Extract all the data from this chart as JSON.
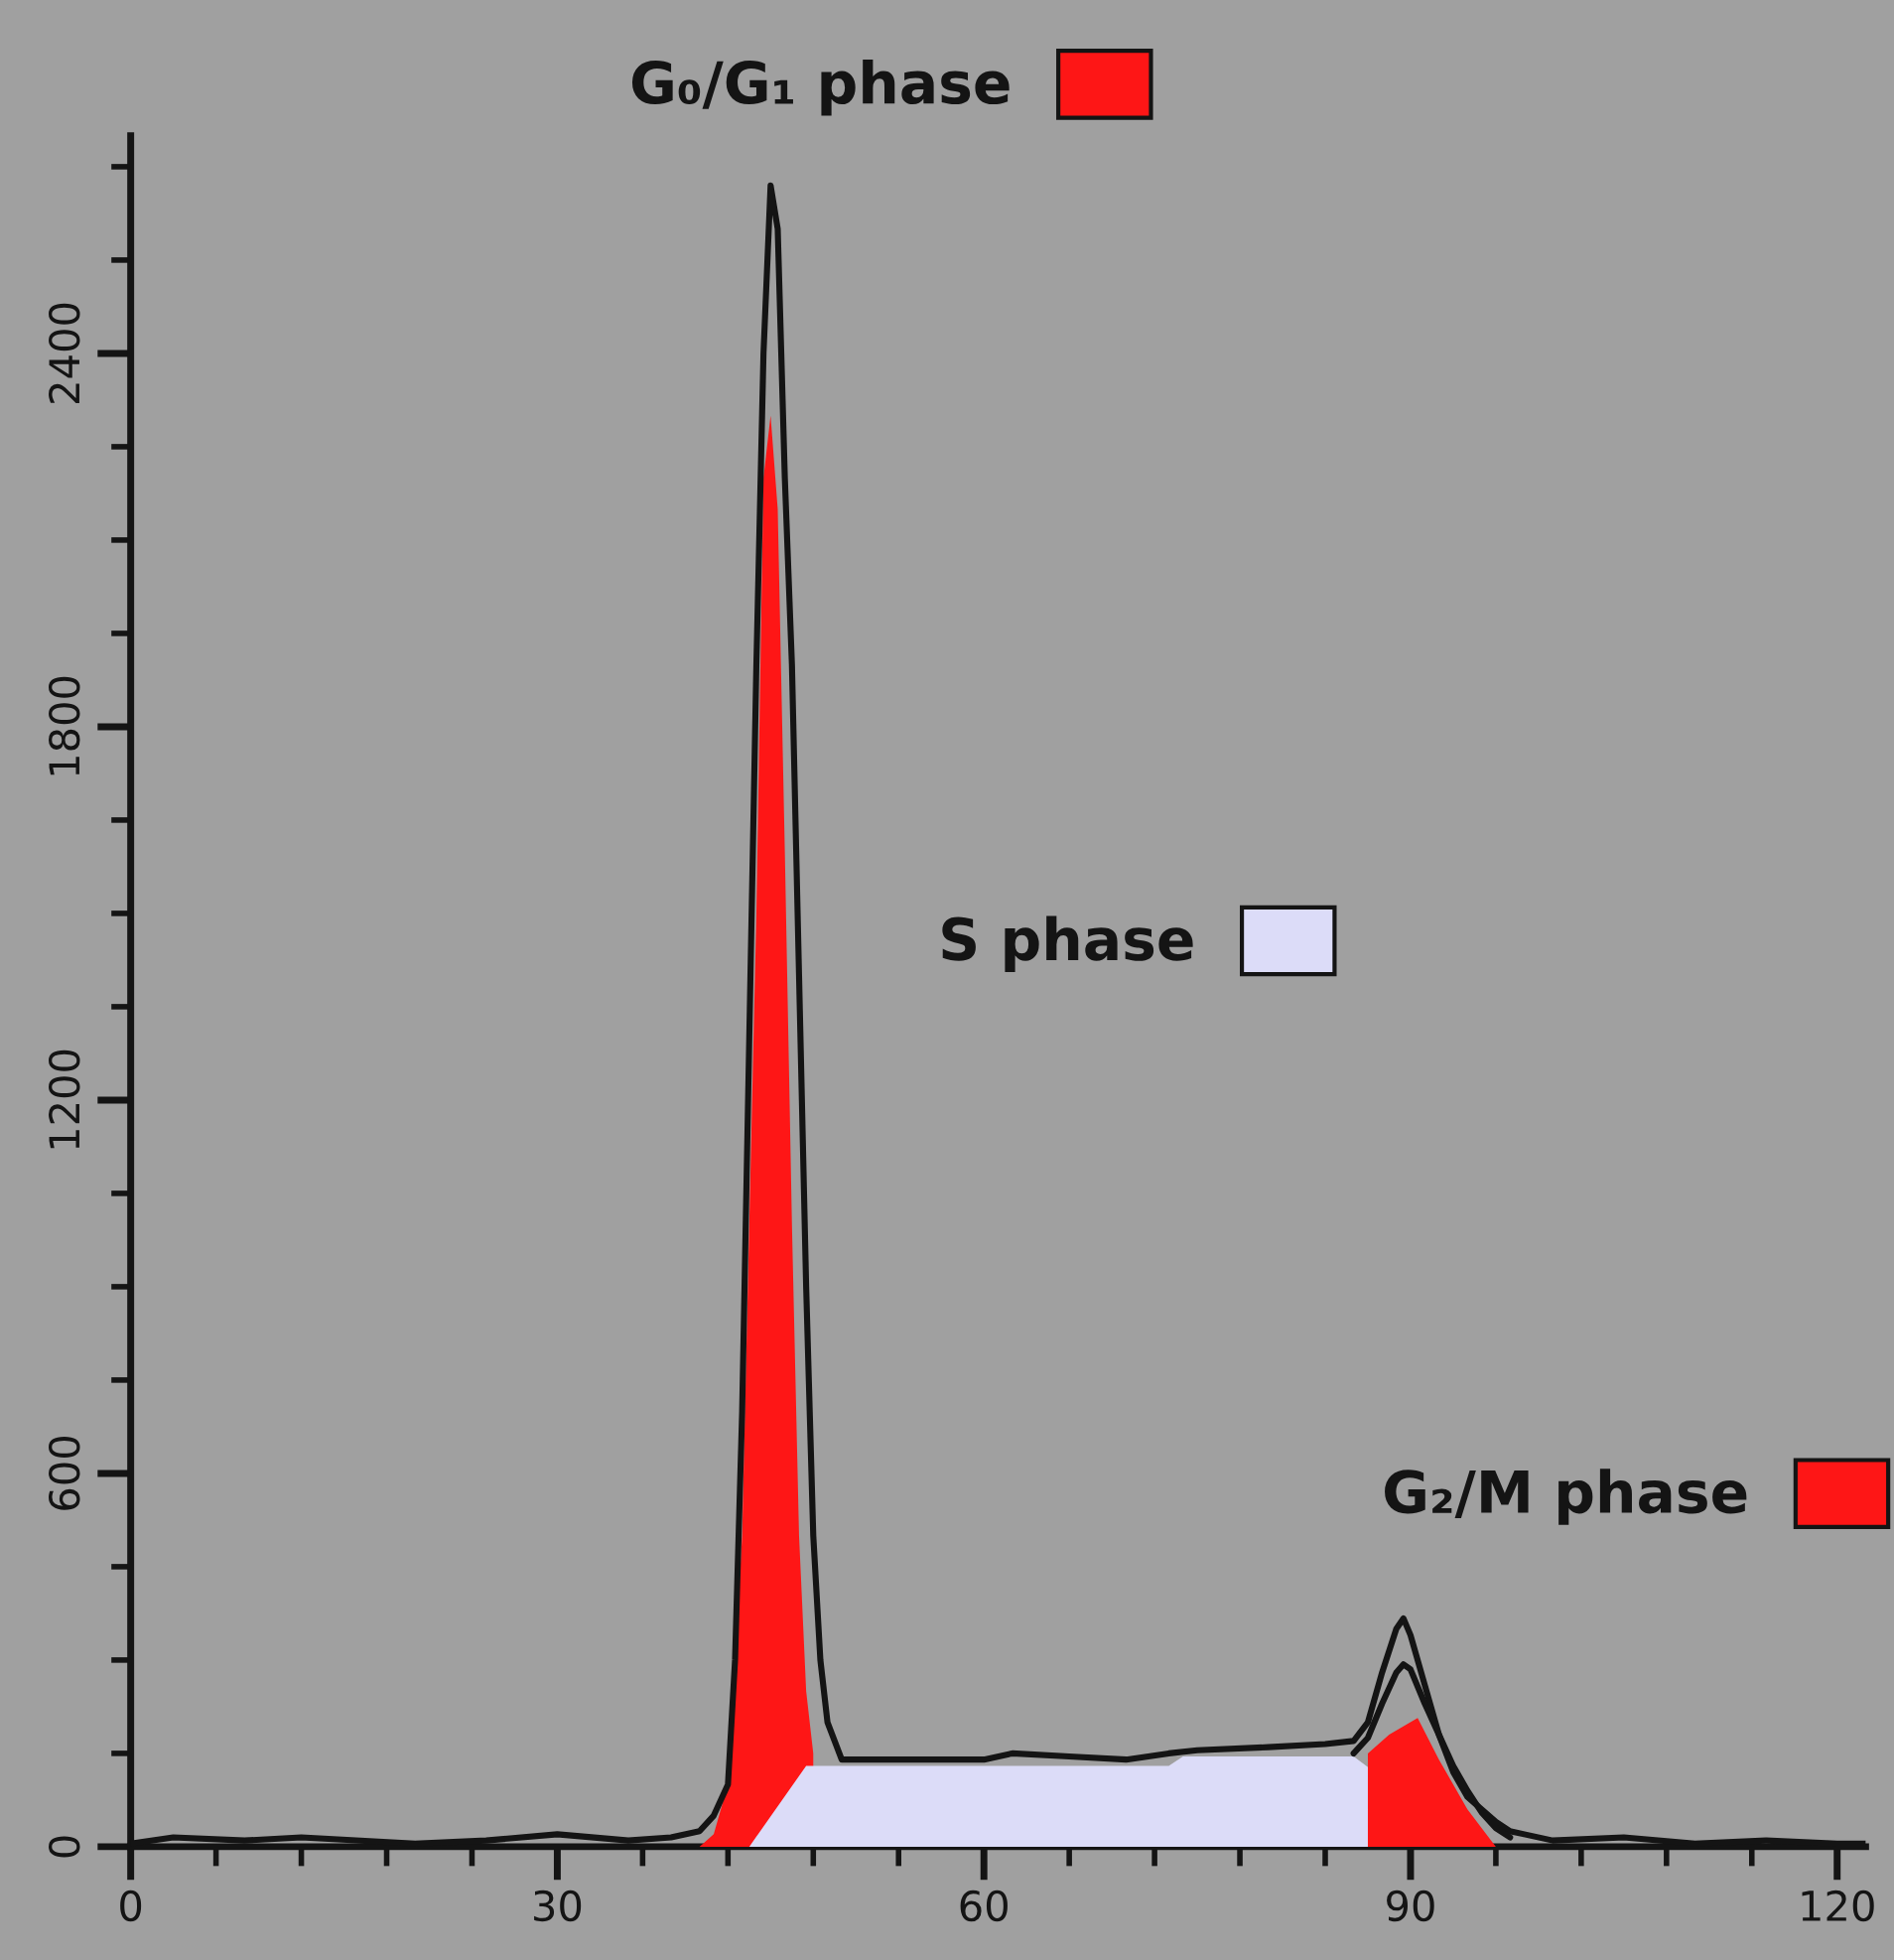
{
  "chart_data": {
    "type": "area",
    "xlim": [
      0,
      122
    ],
    "xticks": [
      0,
      30,
      60,
      90,
      120
    ],
    "ylim": [
      0,
      2750
    ],
    "yticks": [
      0,
      600,
      1200,
      1800,
      2400
    ],
    "grid": false,
    "legend": "top",
    "series": [
      {
        "type": "line",
        "color": "#141414",
        "x": [
          0,
          3,
          8,
          12,
          20,
          25,
          30,
          35,
          38,
          40,
          41,
          42,
          42.5,
          43,
          43.5,
          44,
          44.5,
          45,
          45.5,
          46,
          46.5,
          47,
          47.5,
          48,
          48.5,
          49,
          50,
          55,
          60,
          62,
          66,
          70,
          73,
          75,
          80,
          84,
          86,
          87,
          88,
          89,
          89.5,
          90,
          91,
          92,
          93,
          94,
          96,
          97,
          98,
          100,
          105,
          110,
          115,
          120,
          122
        ],
        "values": [
          5,
          15,
          10,
          15,
          5,
          10,
          20,
          10,
          15,
          25,
          50,
          100,
          300,
          700,
          1300,
          1900,
          2400,
          2670,
          2600,
          2200,
          1900,
          1400,
          900,
          500,
          300,
          200,
          140,
          140,
          140,
          150,
          145,
          140,
          150,
          155,
          160,
          165,
          170,
          200,
          280,
          350,
          367,
          340,
          260,
          180,
          120,
          80,
          40,
          25,
          20,
          10,
          15,
          5,
          10,
          5,
          5
        ]
      },
      {
        "type": "line",
        "color": "#141414",
        "x": [
          86,
          87,
          88,
          89,
          89.5,
          90,
          91,
          92,
          93,
          94,
          95,
          96,
          97
        ],
        "values": [
          150,
          175,
          230,
          280,
          293,
          285,
          230,
          180,
          130,
          90,
          55,
          30,
          15
        ]
      },
      {
        "name": "G₀/G₁ phase",
        "color": "#fe1616",
        "x": [
          40,
          41,
          42,
          43,
          44,
          44.5,
          45,
          45.5,
          46,
          46.5,
          47,
          47.5,
          48
        ],
        "values": [
          0,
          20,
          100,
          500,
          1500,
          2200,
          2300,
          2150,
          1600,
          1000,
          500,
          250,
          150
        ]
      },
      {
        "name": "S phase",
        "color": "#dcdcf8",
        "x": [
          43.5,
          47.5,
          73,
          74,
          86,
          94.5
        ],
        "values": [
          0,
          130,
          130,
          145,
          145,
          0
        ]
      },
      {
        "name": "G₂/M phase",
        "color": "#fe1616",
        "x": [
          87,
          88.5,
          90.5,
          92,
          94,
          96
        ],
        "values": [
          150,
          180,
          207,
          140,
          60,
          0
        ]
      }
    ]
  }
}
